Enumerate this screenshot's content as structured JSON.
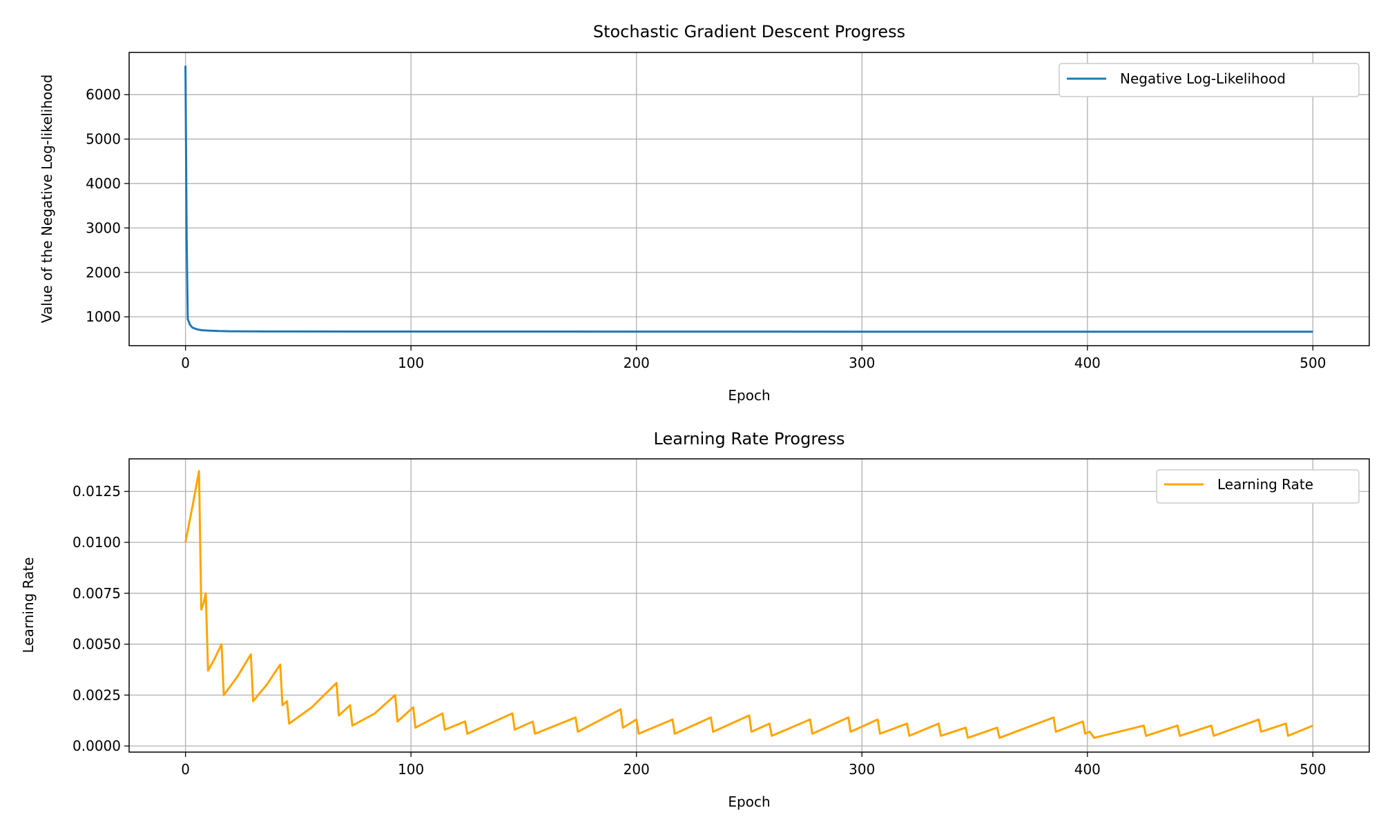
{
  "chart_data": [
    {
      "type": "line",
      "title": "Stochastic Gradient Descent Progress",
      "xlabel": "Epoch",
      "ylabel": "Value of the Negative Log-likelihood",
      "xlim": [
        -25,
        525
      ],
      "ylim": [
        350,
        6950
      ],
      "xticks": [
        0,
        100,
        200,
        300,
        400,
        500
      ],
      "yticks": [
        1000,
        2000,
        3000,
        4000,
        5000,
        6000
      ],
      "grid": true,
      "legend_position": "top-right",
      "series": [
        {
          "name": "Negative Log-Likelihood",
          "color": "#1f77b4",
          "points": [
            [
              0,
              6650
            ],
            [
              0.5,
              2800
            ],
            [
              1,
              950
            ],
            [
              2,
              820
            ],
            [
              3,
              760
            ],
            [
              5,
              720
            ],
            [
              7,
              700
            ],
            [
              10,
              690
            ],
            [
              15,
              680
            ],
            [
              20,
              675
            ],
            [
              30,
              672
            ],
            [
              50,
              670
            ],
            [
              100,
              668
            ],
            [
              200,
              667
            ],
            [
              300,
              666
            ],
            [
              400,
              665
            ],
            [
              500,
              664
            ]
          ]
        }
      ]
    },
    {
      "type": "line",
      "title": "Learning Rate Progress",
      "xlabel": "Epoch",
      "ylabel": "Learning Rate",
      "xlim": [
        -25,
        525
      ],
      "ylim": [
        -0.0003,
        0.0141
      ],
      "xticks": [
        0,
        100,
        200,
        300,
        400,
        500
      ],
      "yticks": [
        0.0,
        0.0025,
        0.005,
        0.0075,
        0.01,
        0.0125
      ],
      "ytick_labels": [
        "0.0000",
        "0.0025",
        "0.0050",
        "0.0075",
        "0.0100",
        "0.0125"
      ],
      "grid": true,
      "legend_position": "top-right",
      "series": [
        {
          "name": "Learning Rate",
          "color": "#ffa500",
          "points": [
            [
              0,
              0.01
            ],
            [
              3,
              0.0117
            ],
            [
              6,
              0.0135
            ],
            [
              7,
              0.0067
            ],
            [
              8,
              0.007
            ],
            [
              9,
              0.0075
            ],
            [
              10,
              0.0037
            ],
            [
              13,
              0.0043
            ],
            [
              16,
              0.005
            ],
            [
              17,
              0.0025
            ],
            [
              23,
              0.0034
            ],
            [
              29,
              0.0045
            ],
            [
              30,
              0.0022
            ],
            [
              36,
              0.003
            ],
            [
              42,
              0.004
            ],
            [
              43,
              0.002
            ],
            [
              44,
              0.0021
            ],
            [
              45,
              0.0022
            ],
            [
              46,
              0.0011
            ],
            [
              56,
              0.0019
            ],
            [
              67,
              0.0031
            ],
            [
              68,
              0.0015
            ],
            [
              71,
              0.0018
            ],
            [
              73,
              0.002
            ],
            [
              74,
              0.001
            ],
            [
              84,
              0.0016
            ],
            [
              93,
              0.0025
            ],
            [
              94,
              0.0012
            ],
            [
              101,
              0.0019
            ],
            [
              102,
              0.0009
            ],
            [
              114,
              0.0016
            ],
            [
              115,
              0.0008
            ],
            [
              124,
              0.0012
            ],
            [
              125,
              0.0006
            ],
            [
              145,
              0.0016
            ],
            [
              146,
              0.0008
            ],
            [
              154,
              0.0012
            ],
            [
              155,
              0.0006
            ],
            [
              173,
              0.0014
            ],
            [
              174,
              0.0007
            ],
            [
              193,
              0.0018
            ],
            [
              194,
              0.0009
            ],
            [
              200,
              0.0013
            ],
            [
              201,
              0.0006
            ],
            [
              216,
              0.0013
            ],
            [
              217,
              0.0006
            ],
            [
              233,
              0.0014
            ],
            [
              234,
              0.0007
            ],
            [
              250,
              0.0015
            ],
            [
              251,
              0.0007
            ],
            [
              259,
              0.0011
            ],
            [
              260,
              0.0005
            ],
            [
              277,
              0.0013
            ],
            [
              278,
              0.0006
            ],
            [
              294,
              0.0014
            ],
            [
              295,
              0.0007
            ],
            [
              307,
              0.0013
            ],
            [
              308,
              0.0006
            ],
            [
              320,
              0.0011
            ],
            [
              321,
              0.0005
            ],
            [
              334,
              0.0011
            ],
            [
              335,
              0.0005
            ],
            [
              346,
              0.0009
            ],
            [
              347,
              0.0004
            ],
            [
              360,
              0.0009
            ],
            [
              361,
              0.0004
            ],
            [
              385,
              0.0014
            ],
            [
              386,
              0.0007
            ],
            [
              398,
              0.0012
            ],
            [
              399,
              0.0006
            ],
            [
              401,
              0.0007
            ],
            [
              403,
              0.0004
            ],
            [
              425,
              0.001
            ],
            [
              426,
              0.0005
            ],
            [
              440,
              0.001
            ],
            [
              441,
              0.0005
            ],
            [
              455,
              0.001
            ],
            [
              456,
              0.0005
            ],
            [
              476,
              0.0013
            ],
            [
              477,
              0.0007
            ],
            [
              488,
              0.0011
            ],
            [
              489,
              0.0005
            ],
            [
              500,
              0.001
            ]
          ]
        }
      ]
    }
  ]
}
